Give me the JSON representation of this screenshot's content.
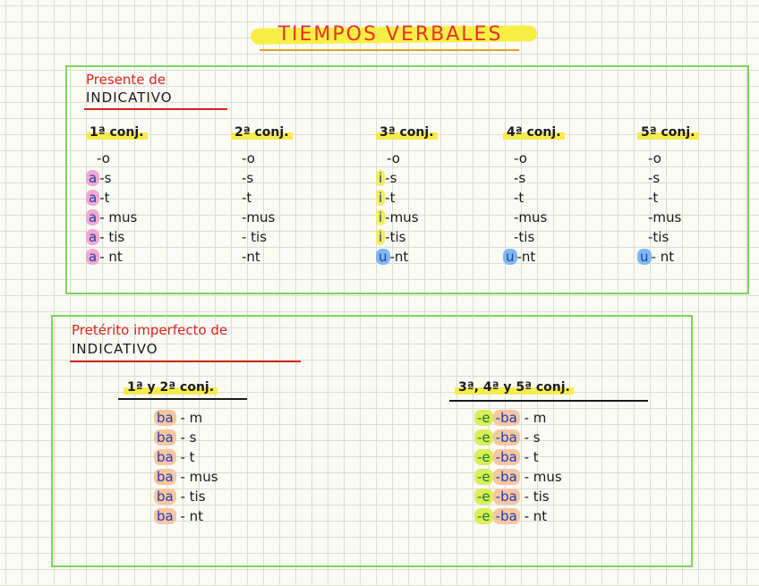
{
  "title": "TIEMPOS VERBALES",
  "presente": {
    "title_line1": "Presente de",
    "title_line2": "INDICATIVO",
    "columns": [
      {
        "header": "1ª conj.",
        "marker": "a",
        "marker_color": "pink",
        "rows": [
          {
            "m": "",
            "t": "-o"
          },
          {
            "m": "a",
            "t": "-s"
          },
          {
            "m": "a",
            "t": "-t"
          },
          {
            "m": "a",
            "t": "- mus"
          },
          {
            "m": "a",
            "t": "- tis"
          },
          {
            "m": "a",
            "t": "- nt"
          }
        ]
      },
      {
        "header": "2ª conj.",
        "marker": "",
        "marker_color": "",
        "rows": [
          {
            "m": "",
            "t": "-o"
          },
          {
            "m": "",
            "t": "-s"
          },
          {
            "m": "",
            "t": "-t"
          },
          {
            "m": "",
            "t": "-mus"
          },
          {
            "m": "",
            "t": "- tis"
          },
          {
            "m": "",
            "t": "-nt"
          }
        ]
      },
      {
        "header": "3ª conj.",
        "marker": "i",
        "marker_color": "yellow",
        "rows": [
          {
            "m": "",
            "t": "-o"
          },
          {
            "m": "i",
            "t": "-s"
          },
          {
            "m": "i",
            "t": "-t"
          },
          {
            "m": "i",
            "t": "-mus"
          },
          {
            "m": "i",
            "t": "-tis"
          },
          {
            "m": "u",
            "t": "-nt",
            "c": "blue"
          }
        ]
      },
      {
        "header": "4ª conj.",
        "marker": "",
        "marker_color": "",
        "rows": [
          {
            "m": "",
            "t": "-o"
          },
          {
            "m": "",
            "t": "-s"
          },
          {
            "m": "",
            "t": "-t"
          },
          {
            "m": "",
            "t": "-mus"
          },
          {
            "m": "",
            "t": "-tis"
          },
          {
            "m": "u",
            "t": "-nt",
            "c": "blue"
          }
        ]
      },
      {
        "header": "5ª conj.",
        "marker": "",
        "marker_color": "",
        "rows": [
          {
            "m": "",
            "t": "-o"
          },
          {
            "m": "",
            "t": "-s"
          },
          {
            "m": "",
            "t": "-t"
          },
          {
            "m": "",
            "t": "-mus"
          },
          {
            "m": "",
            "t": "-tis"
          },
          {
            "m": "u",
            "t": "- nt",
            "c": "blue"
          }
        ]
      }
    ]
  },
  "imperfecto": {
    "title_line1": "Pretérito imperfecto de",
    "title_line2": "INDICATIVO",
    "col1": {
      "header": "1ª y 2ª conj.",
      "rows": [
        {
          "a": "ba",
          "t": "- m"
        },
        {
          "a": "ba",
          "t": "- s"
        },
        {
          "a": "ba",
          "t": "- t"
        },
        {
          "a": "ba",
          "t": "- mus"
        },
        {
          "a": "ba",
          "t": "- tis"
        },
        {
          "a": "ba",
          "t": "- nt"
        }
      ]
    },
    "col2": {
      "header": "3ª, 4ª y 5ª conj.",
      "rows": [
        {
          "e": "-e",
          "a": "-ba",
          "t": "- m"
        },
        {
          "e": "-e",
          "a": "-ba",
          "t": "- s"
        },
        {
          "e": "-e",
          "a": "-ba",
          "t": "- t"
        },
        {
          "e": "-e",
          "a": "-ba",
          "t": "- mus"
        },
        {
          "e": "-e",
          "a": "-ba",
          "t": "- tis"
        },
        {
          "e": "-e",
          "a": "-ba",
          "t": "- nt"
        }
      ]
    }
  }
}
